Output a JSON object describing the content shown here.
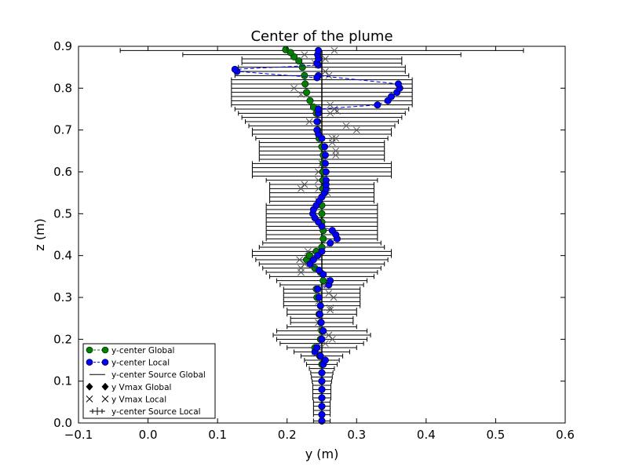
{
  "chart_data": {
    "type": "scatter",
    "title": "Center of the plume",
    "xlabel": "y (m)",
    "ylabel": "z (m)",
    "xlim": [
      -0.1,
      0.6
    ],
    "ylim": [
      0.0,
      0.9
    ],
    "xticks": [
      "−0.1",
      "0.0",
      "0.1",
      "0.2",
      "0.3",
      "0.4",
      "0.5",
      "0.6"
    ],
    "yticks": [
      "0.0",
      "0.1",
      "0.2",
      "0.3",
      "0.4",
      "0.5",
      "0.6",
      "0.7",
      "0.8",
      "0.9"
    ],
    "grid": false,
    "legend_position": "lower-left",
    "legend": [
      {
        "label": "y-center Global",
        "style": "line-dashed-circle",
        "color": "#008000"
      },
      {
        "label": "y-center Local",
        "style": "line-dashed-circle",
        "color": "#0000ff"
      },
      {
        "label": "y-center Source Global",
        "style": "line",
        "color": "#000000"
      },
      {
        "label": "y Vmax Global",
        "style": "diamond",
        "color": "#000000"
      },
      {
        "label": "y Vmax Local",
        "style": "x",
        "color": "#000000"
      },
      {
        "label": "y-center Source Local",
        "style": "errorbar",
        "color": "#000000"
      }
    ],
    "series": [
      {
        "name": "y-center Global",
        "color": "#008000",
        "points": [
          [
            0.25,
            0.005
          ],
          [
            0.25,
            0.02
          ],
          [
            0.25,
            0.04
          ],
          [
            0.25,
            0.06
          ],
          [
            0.25,
            0.08
          ],
          [
            0.25,
            0.1
          ],
          [
            0.25,
            0.12
          ],
          [
            0.25,
            0.14
          ],
          [
            0.247,
            0.16
          ],
          [
            0.24,
            0.18
          ],
          [
            0.248,
            0.2
          ],
          [
            0.25,
            0.22
          ],
          [
            0.249,
            0.24
          ],
          [
            0.246,
            0.26
          ],
          [
            0.248,
            0.28
          ],
          [
            0.243,
            0.3
          ],
          [
            0.242,
            0.32
          ],
          [
            0.252,
            0.34
          ],
          [
            0.248,
            0.36
          ],
          [
            0.24,
            0.37
          ],
          [
            0.228,
            0.39
          ],
          [
            0.232,
            0.4
          ],
          [
            0.242,
            0.41
          ],
          [
            0.25,
            0.42
          ],
          [
            0.252,
            0.44
          ],
          [
            0.252,
            0.46
          ],
          [
            0.25,
            0.48
          ],
          [
            0.25,
            0.5
          ],
          [
            0.25,
            0.52
          ],
          [
            0.25,
            0.54
          ],
          [
            0.252,
            0.56
          ],
          [
            0.252,
            0.58
          ],
          [
            0.252,
            0.6
          ],
          [
            0.252,
            0.62
          ],
          [
            0.252,
            0.64
          ],
          [
            0.25,
            0.66
          ],
          [
            0.246,
            0.68
          ],
          [
            0.244,
            0.7
          ],
          [
            0.244,
            0.72
          ],
          [
            0.242,
            0.74
          ],
          [
            0.238,
            0.755
          ],
          [
            0.233,
            0.77
          ],
          [
            0.228,
            0.79
          ],
          [
            0.226,
            0.81
          ],
          [
            0.225,
            0.83
          ],
          [
            0.222,
            0.85
          ],
          [
            0.217,
            0.865
          ],
          [
            0.21,
            0.875
          ],
          [
            0.205,
            0.885
          ],
          [
            0.198,
            0.892
          ]
        ]
      },
      {
        "name": "y-center Local",
        "color": "#0000ff",
        "points": [
          [
            0.25,
            0.005
          ],
          [
            0.25,
            0.02
          ],
          [
            0.25,
            0.04
          ],
          [
            0.25,
            0.06
          ],
          [
            0.25,
            0.08
          ],
          [
            0.25,
            0.1
          ],
          [
            0.25,
            0.12
          ],
          [
            0.252,
            0.14
          ],
          [
            0.255,
            0.15
          ],
          [
            0.248,
            0.16
          ],
          [
            0.24,
            0.17
          ],
          [
            0.243,
            0.18
          ],
          [
            0.25,
            0.2
          ],
          [
            0.252,
            0.22
          ],
          [
            0.249,
            0.24
          ],
          [
            0.247,
            0.26
          ],
          [
            0.248,
            0.28
          ],
          [
            0.246,
            0.3
          ],
          [
            0.244,
            0.32
          ],
          [
            0.26,
            0.33
          ],
          [
            0.262,
            0.34
          ],
          [
            0.252,
            0.355
          ],
          [
            0.246,
            0.365
          ],
          [
            0.233,
            0.38
          ],
          [
            0.238,
            0.39
          ],
          [
            0.244,
            0.4
          ],
          [
            0.25,
            0.41
          ],
          [
            0.262,
            0.43
          ],
          [
            0.272,
            0.44
          ],
          [
            0.27,
            0.45
          ],
          [
            0.265,
            0.46
          ],
          [
            0.25,
            0.47
          ],
          [
            0.245,
            0.48
          ],
          [
            0.24,
            0.49
          ],
          [
            0.237,
            0.5
          ],
          [
            0.238,
            0.51
          ],
          [
            0.242,
            0.52
          ],
          [
            0.246,
            0.53
          ],
          [
            0.25,
            0.54
          ],
          [
            0.254,
            0.55
          ],
          [
            0.256,
            0.56
          ],
          [
            0.256,
            0.57
          ],
          [
            0.256,
            0.58
          ],
          [
            0.256,
            0.6
          ],
          [
            0.255,
            0.62
          ],
          [
            0.255,
            0.64
          ],
          [
            0.254,
            0.66
          ],
          [
            0.25,
            0.68
          ],
          [
            0.245,
            0.69
          ],
          [
            0.243,
            0.7
          ],
          [
            0.243,
            0.72
          ],
          [
            0.245,
            0.74
          ],
          [
            0.245,
            0.75
          ],
          [
            0.33,
            0.76
          ],
          [
            0.345,
            0.77
          ],
          [
            0.35,
            0.78
          ],
          [
            0.358,
            0.79
          ],
          [
            0.362,
            0.8
          ],
          [
            0.36,
            0.81
          ],
          [
            0.245,
            0.83
          ],
          [
            0.243,
            0.825
          ],
          [
            0.128,
            0.84
          ],
          [
            0.125,
            0.845
          ],
          [
            0.245,
            0.855
          ],
          [
            0.243,
            0.86
          ],
          [
            0.245,
            0.87
          ],
          [
            0.244,
            0.88
          ],
          [
            0.245,
            0.89
          ]
        ]
      }
    ],
    "vmax_local": [
      [
        0.24,
        0.17
      ],
      [
        0.245,
        0.18
      ],
      [
        0.255,
        0.19
      ],
      [
        0.26,
        0.21
      ],
      [
        0.265,
        0.2
      ],
      [
        0.248,
        0.23
      ],
      [
        0.248,
        0.25
      ],
      [
        0.245,
        0.24
      ],
      [
        0.262,
        0.27
      ],
      [
        0.262,
        0.275
      ],
      [
        0.245,
        0.29
      ],
      [
        0.267,
        0.3
      ],
      [
        0.26,
        0.31
      ],
      [
        0.245,
        0.32
      ],
      [
        0.258,
        0.33
      ],
      [
        0.22,
        0.36
      ],
      [
        0.22,
        0.37
      ],
      [
        0.225,
        0.38
      ],
      [
        0.218,
        0.39
      ],
      [
        0.235,
        0.405
      ],
      [
        0.23,
        0.41
      ],
      [
        0.245,
        0.53
      ],
      [
        0.258,
        0.55
      ],
      [
        0.245,
        0.56
      ],
      [
        0.22,
        0.56
      ],
      [
        0.225,
        0.57
      ],
      [
        0.245,
        0.58
      ],
      [
        0.245,
        0.6
      ],
      [
        0.25,
        0.62
      ],
      [
        0.27,
        0.64
      ],
      [
        0.27,
        0.65
      ],
      [
        0.265,
        0.68
      ],
      [
        0.27,
        0.68
      ],
      [
        0.265,
        0.67
      ],
      [
        0.285,
        0.71
      ],
      [
        0.3,
        0.7
      ],
      [
        0.232,
        0.72
      ],
      [
        0.262,
        0.74
      ],
      [
        0.272,
        0.745
      ],
      [
        0.268,
        0.75
      ],
      [
        0.262,
        0.76
      ],
      [
        0.21,
        0.8
      ],
      [
        0.22,
        0.785
      ],
      [
        0.26,
        0.83
      ],
      [
        0.255,
        0.84
      ],
      [
        0.245,
        0.855
      ],
      [
        0.24,
        0.86
      ],
      [
        0.255,
        0.87
      ],
      [
        0.225,
        0.88
      ],
      [
        0.268,
        0.89
      ]
    ],
    "source_global_x": 0.25,
    "source_local_errorbars": [
      {
        "z": 0.005,
        "halfwidth": 0.012
      },
      {
        "z": 0.02,
        "halfwidth": 0.012
      },
      {
        "z": 0.03,
        "halfwidth": 0.012
      },
      {
        "z": 0.04,
        "halfwidth": 0.012
      },
      {
        "z": 0.05,
        "halfwidth": 0.012
      },
      {
        "z": 0.06,
        "halfwidth": 0.013
      },
      {
        "z": 0.07,
        "halfwidth": 0.013
      },
      {
        "z": 0.08,
        "halfwidth": 0.013
      },
      {
        "z": 0.09,
        "halfwidth": 0.013
      },
      {
        "z": 0.1,
        "halfwidth": 0.014
      },
      {
        "z": 0.11,
        "halfwidth": 0.015
      },
      {
        "z": 0.12,
        "halfwidth": 0.016
      },
      {
        "z": 0.13,
        "halfwidth": 0.018
      },
      {
        "z": 0.14,
        "halfwidth": 0.022
      },
      {
        "z": 0.15,
        "halfwidth": 0.025
      },
      {
        "z": 0.16,
        "halfwidth": 0.03
      },
      {
        "z": 0.17,
        "halfwidth": 0.04
      },
      {
        "z": 0.18,
        "halfwidth": 0.05
      },
      {
        "z": 0.19,
        "halfwidth": 0.06
      },
      {
        "z": 0.2,
        "halfwidth": 0.065
      },
      {
        "z": 0.21,
        "halfwidth": 0.07
      },
      {
        "z": 0.22,
        "halfwidth": 0.065
      },
      {
        "z": 0.23,
        "halfwidth": 0.05
      },
      {
        "z": 0.24,
        "halfwidth": 0.045
      },
      {
        "z": 0.25,
        "halfwidth": 0.045
      },
      {
        "z": 0.26,
        "halfwidth": 0.05
      },
      {
        "z": 0.27,
        "halfwidth": 0.05
      },
      {
        "z": 0.28,
        "halfwidth": 0.055
      },
      {
        "z": 0.29,
        "halfwidth": 0.055
      },
      {
        "z": 0.3,
        "halfwidth": 0.055
      },
      {
        "z": 0.31,
        "halfwidth": 0.055
      },
      {
        "z": 0.32,
        "halfwidth": 0.055
      },
      {
        "z": 0.33,
        "halfwidth": 0.06
      },
      {
        "z": 0.34,
        "halfwidth": 0.065
      },
      {
        "z": 0.35,
        "halfwidth": 0.075
      },
      {
        "z": 0.36,
        "halfwidth": 0.08
      },
      {
        "z": 0.37,
        "halfwidth": 0.085
      },
      {
        "z": 0.38,
        "halfwidth": 0.09
      },
      {
        "z": 0.39,
        "halfwidth": 0.095
      },
      {
        "z": 0.4,
        "halfwidth": 0.1
      },
      {
        "z": 0.41,
        "halfwidth": 0.1
      },
      {
        "z": 0.42,
        "halfwidth": 0.09
      },
      {
        "z": 0.43,
        "halfwidth": 0.085
      },
      {
        "z": 0.44,
        "halfwidth": 0.08
      },
      {
        "z": 0.45,
        "halfwidth": 0.08
      },
      {
        "z": 0.46,
        "halfwidth": 0.08
      },
      {
        "z": 0.47,
        "halfwidth": 0.08
      },
      {
        "z": 0.48,
        "halfwidth": 0.08
      },
      {
        "z": 0.49,
        "halfwidth": 0.08
      },
      {
        "z": 0.5,
        "halfwidth": 0.08
      },
      {
        "z": 0.51,
        "halfwidth": 0.08
      },
      {
        "z": 0.52,
        "halfwidth": 0.08
      },
      {
        "z": 0.53,
        "halfwidth": 0.075
      },
      {
        "z": 0.54,
        "halfwidth": 0.075
      },
      {
        "z": 0.55,
        "halfwidth": 0.075
      },
      {
        "z": 0.56,
        "halfwidth": 0.075
      },
      {
        "z": 0.57,
        "halfwidth": 0.075
      },
      {
        "z": 0.58,
        "halfwidth": 0.08
      },
      {
        "z": 0.59,
        "halfwidth": 0.1
      },
      {
        "z": 0.6,
        "halfwidth": 0.1
      },
      {
        "z": 0.61,
        "halfwidth": 0.1
      },
      {
        "z": 0.62,
        "halfwidth": 0.1
      },
      {
        "z": 0.63,
        "halfwidth": 0.09
      },
      {
        "z": 0.64,
        "halfwidth": 0.09
      },
      {
        "z": 0.65,
        "halfwidth": 0.09
      },
      {
        "z": 0.66,
        "halfwidth": 0.09
      },
      {
        "z": 0.67,
        "halfwidth": 0.09
      },
      {
        "z": 0.68,
        "halfwidth": 0.095
      },
      {
        "z": 0.69,
        "halfwidth": 0.1
      },
      {
        "z": 0.7,
        "halfwidth": 0.1
      },
      {
        "z": 0.71,
        "halfwidth": 0.105
      },
      {
        "z": 0.72,
        "halfwidth": 0.11
      },
      {
        "z": 0.73,
        "halfwidth": 0.115
      },
      {
        "z": 0.74,
        "halfwidth": 0.12
      },
      {
        "z": 0.75,
        "halfwidth": 0.125
      },
      {
        "z": 0.76,
        "halfwidth": 0.13
      },
      {
        "z": 0.77,
        "halfwidth": 0.13
      },
      {
        "z": 0.78,
        "halfwidth": 0.13
      },
      {
        "z": 0.79,
        "halfwidth": 0.13
      },
      {
        "z": 0.8,
        "halfwidth": 0.13
      },
      {
        "z": 0.81,
        "halfwidth": 0.13
      },
      {
        "z": 0.82,
        "halfwidth": 0.13
      },
      {
        "z": 0.83,
        "halfwidth": 0.125
      },
      {
        "z": 0.84,
        "halfwidth": 0.12
      },
      {
        "z": 0.85,
        "halfwidth": 0.12
      },
      {
        "z": 0.86,
        "halfwidth": 0.115
      },
      {
        "z": 0.87,
        "halfwidth": 0.115
      },
      {
        "z": 0.88,
        "halfwidth": 0.2
      },
      {
        "z": 0.89,
        "halfwidth": 0.29
      }
    ]
  }
}
